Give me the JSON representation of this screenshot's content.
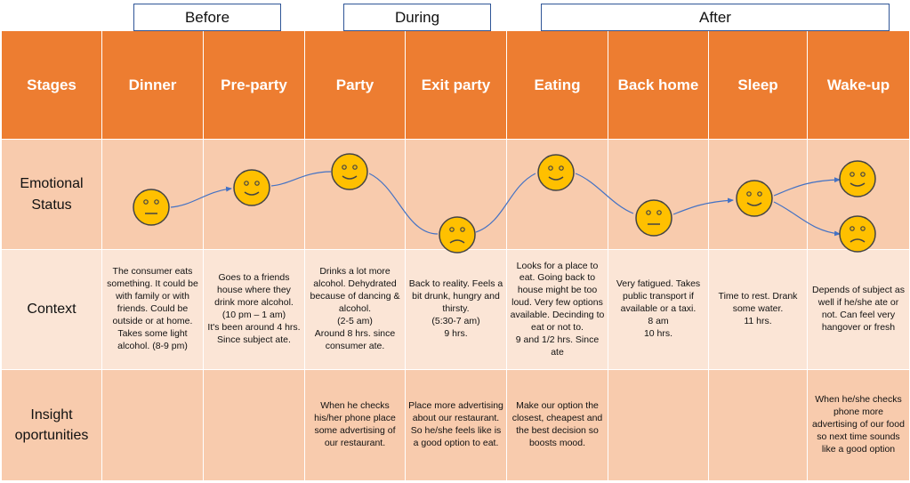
{
  "phases": {
    "before": "Before",
    "during": "During",
    "after": "After"
  },
  "header": {
    "stages": "Stages",
    "columns": [
      "Dinner",
      "Pre-party",
      "Party",
      "Exit party",
      "Eating",
      "Back home",
      "Sleep",
      "Wake-up"
    ]
  },
  "rows": {
    "emotional": "Emotional\nStatus",
    "context": "Context",
    "insight": "Insight\noportunities"
  },
  "emotion_states": [
    "neutral",
    "happy",
    "happy",
    "sad",
    "happy",
    "neutral",
    "happy",
    "happy / sad"
  ],
  "context": [
    "The consumer eats something. It could be with family or with friends. Could be outside or at home.\nTakes some light alcohol. (8-9 pm)",
    "Goes to a friends house where they drink more alcohol.\n(10 pm – 1 am)\nIt's been around 4 hrs. Since subject ate.",
    "Drinks a lot more alcohol. Dehydrated because of dancing & alcohol.\n(2-5 am)\nAround 8 hrs. since consumer ate.",
    "Back to reality. Feels a bit drunk, hungry and thirsty.\n(5:30-7 am)\n9 hrs.",
    "Looks for a place to eat. Going back to house might be too loud. Very few options available. Decinding to eat or not to.\n9 and 1/2 hrs. Since ate",
    "Very fatigued. Takes public transport if available or a taxi.\n8 am\n10 hrs.",
    "Time to rest. Drank some water.\n11 hrs.",
    "Depends of subject as well if he/she ate or not. Can feel very hangover or fresh"
  ],
  "insight": [
    "",
    "",
    "When he checks his/her phone place some advertising of our restaurant.",
    "Place more advertising about our restaurant. So he/she feels like is a good option to eat.",
    "Make our option the closest, cheapest and the best decision so boosts mood.",
    "",
    "",
    "When he/she checks phone more advertising of our food so next time sounds like a good option"
  ],
  "colors": {
    "header": "#ed7d31",
    "emotional_row": "#f8cbad",
    "context_row": "#fbe5d6",
    "insight_row": "#f8cbad",
    "face": "#ffc000",
    "arrow": "#4472c4",
    "phase_border": "#2f5597"
  }
}
